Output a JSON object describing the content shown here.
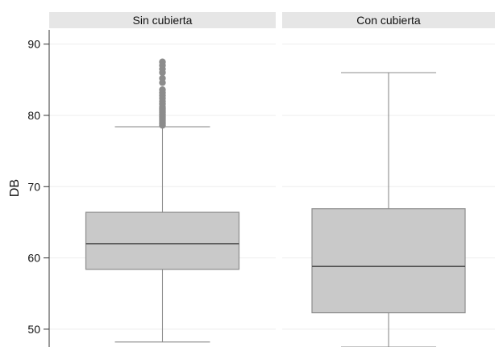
{
  "chart_data": {
    "type": "boxplot",
    "ylabel": "DB",
    "ylim": [
      47.5,
      92
    ],
    "yticks": [
      50,
      60,
      70,
      80,
      90
    ],
    "grid": true,
    "panels": [
      {
        "label": "Sin cubierta",
        "min": 48.2,
        "q1": 58.4,
        "median": 62.0,
        "q3": 66.4,
        "max": 78.4,
        "outliers": [
          78.6,
          78.8,
          79.0,
          79.2,
          79.4,
          79.6,
          79.8,
          80.0,
          80.2,
          80.4,
          80.6,
          80.8,
          81.0,
          81.2,
          81.6,
          82.0,
          82.4,
          82.8,
          83.2,
          83.6,
          84.6,
          85.2,
          86.0,
          86.5,
          87.0,
          87.5
        ]
      },
      {
        "label": "Con cubierta",
        "min": 47.5,
        "q1": 52.3,
        "median": 58.8,
        "q3": 66.9,
        "max": 86.0,
        "outliers": []
      }
    ],
    "colors": {
      "box_fill": "#c9c9c9",
      "box_stroke": "#8c8c8c",
      "median": "#4d4d4d",
      "whisker": "#8c8c8c",
      "outlier": "#8c8c8c",
      "grid": "#ededed",
      "strip_bg": "#e6e6e6"
    }
  }
}
